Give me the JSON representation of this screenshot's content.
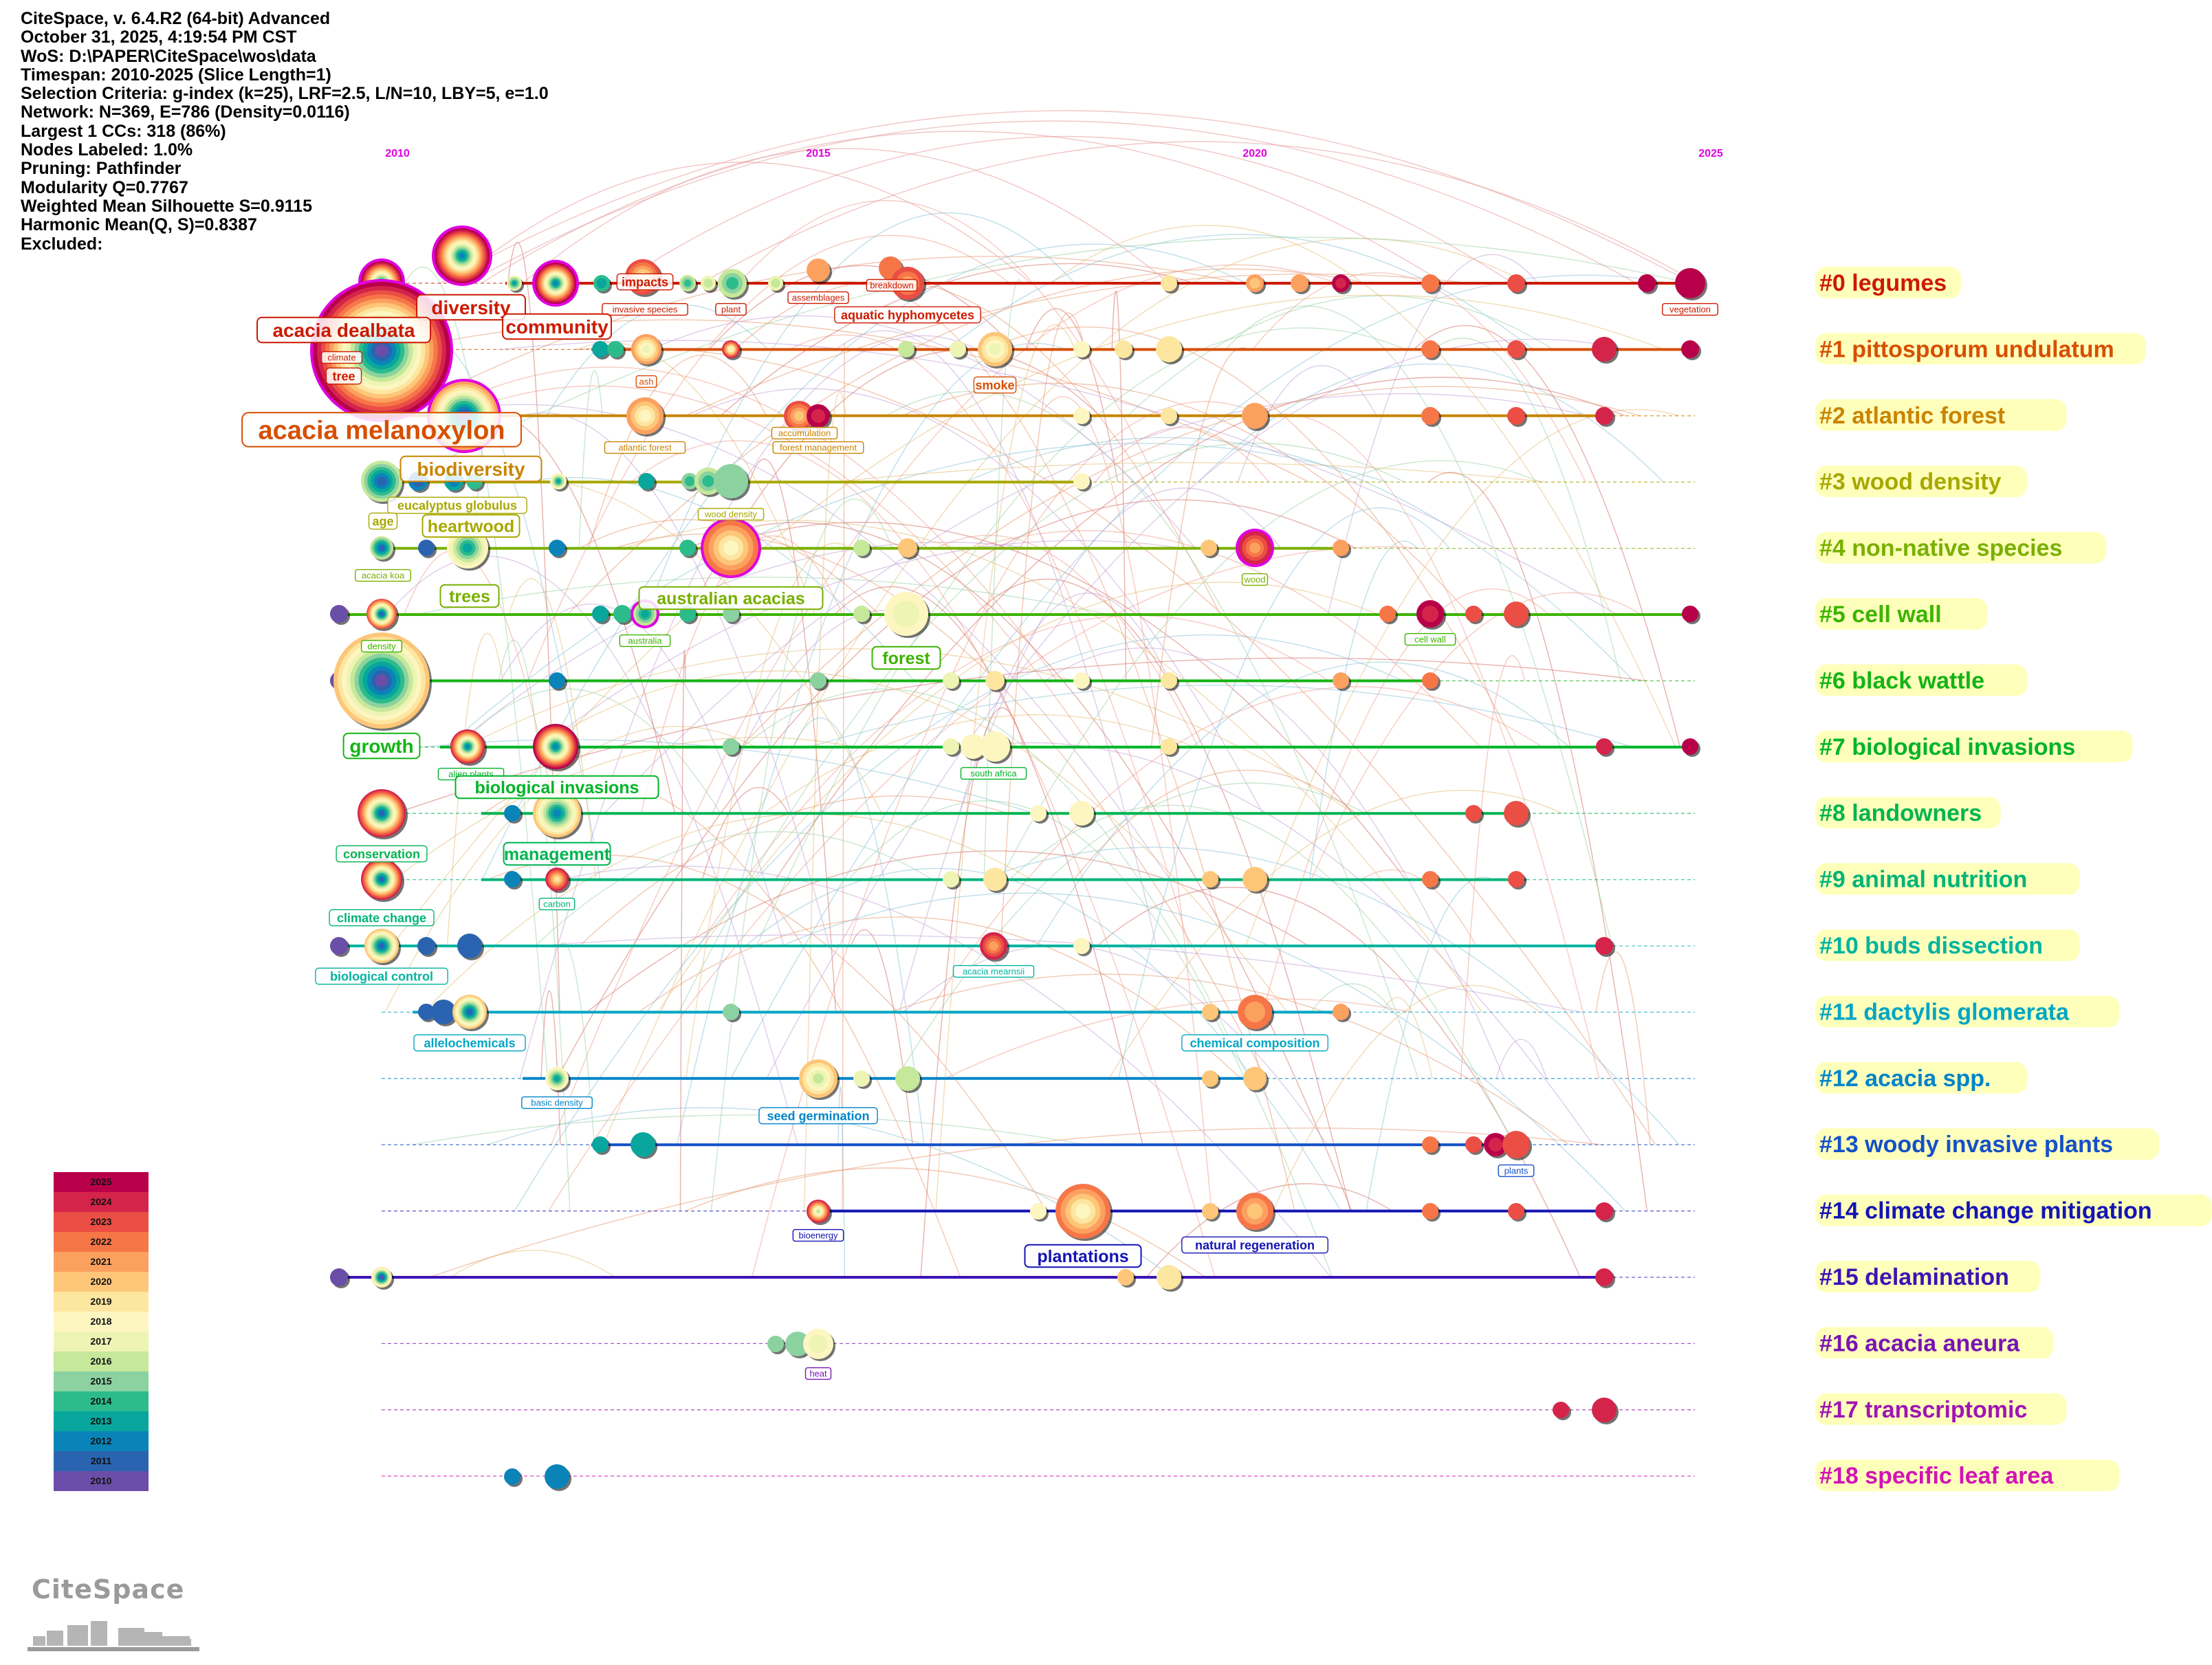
{
  "info": {
    "lines": [
      "CiteSpace, v. 6.4.R2 (64-bit) Advanced",
      "October 31, 2025, 4:19:54 PM CST",
      "WoS: D:\\PAPER\\CiteSpace\\wos\\data",
      "Timespan: 2010-2025 (Slice Length=1)",
      "Selection Criteria: g-index (k=25), LRF=2.5, L/N=10, LBY=5, e=1.0",
      "Network: N=369, E=786 (Density=0.0116)",
      "Largest 1 CCs: 318 (86%)",
      "Nodes Labeled: 1.0%",
      "Pruning: Pathfinder",
      "Modularity Q=0.7767",
      "Weighted Mean Silhouette S=0.9115",
      "Harmonic Mean(Q, S)=0.8387",
      "Excluded:"
    ]
  },
  "timeline": {
    "year_start": 2010,
    "year_end": 2025,
    "year_ticks": [
      "2010",
      "2015",
      "2020",
      "2025"
    ],
    "tick_color": "#e000e0"
  },
  "clusters": [
    {
      "id": 0,
      "label": "#0 legumes",
      "color": "#cc1a00"
    },
    {
      "id": 1,
      "label": "#1 pittosporum undulatum",
      "color": "#d64f00"
    },
    {
      "id": 2,
      "label": "#2 atlantic forest",
      "color": "#c98400"
    },
    {
      "id": 3,
      "label": "#3 wood density",
      "color": "#a8a800"
    },
    {
      "id": 4,
      "label": "#4 non-native species",
      "color": "#78b000"
    },
    {
      "id": 5,
      "label": "#5 cell wall",
      "color": "#3cb400"
    },
    {
      "id": 6,
      "label": "#6 black wattle",
      "color": "#14b414"
    },
    {
      "id": 7,
      "label": "#7 biological invasions",
      "color": "#00b428"
    },
    {
      "id": 8,
      "label": "#8 landowners",
      "color": "#00b450"
    },
    {
      "id": 9,
      "label": "#9 animal nutrition",
      "color": "#00b478"
    },
    {
      "id": 10,
      "label": "#10 buds dissection",
      "color": "#00b4a0"
    },
    {
      "id": 11,
      "label": "#11 dactylis glomerata",
      "color": "#00a6c4"
    },
    {
      "id": 12,
      "label": "#12 acacia spp.",
      "color": "#0084c8"
    },
    {
      "id": 13,
      "label": "#13 woody invasive plants",
      "color": "#1450c8"
    },
    {
      "id": 14,
      "label": "#14 climate change mitigation",
      "color": "#1414b4"
    },
    {
      "id": 15,
      "label": "#15 delamination",
      "color": "#3c14b4"
    },
    {
      "id": 16,
      "label": "#16 acacia aneura",
      "color": "#7814b4"
    },
    {
      "id": 17,
      "label": "#17 transcriptomic",
      "color": "#a014b4"
    },
    {
      "id": 18,
      "label": "#18 specific leaf area",
      "color": "#d214b4"
    }
  ],
  "year_colors": {
    "2010": "#6b4ea8",
    "2011": "#2a64b0",
    "2012": "#0a84b8",
    "2013": "#08a69c",
    "2014": "#2cbc8c",
    "2015": "#8cd2a0",
    "2016": "#c6e89a",
    "2017": "#eef4b4",
    "2018": "#fdf6c0",
    "2019": "#fde6a0",
    "2020": "#fdc678",
    "2021": "#fca060",
    "2022": "#f77648",
    "2023": "#ea4e44",
    "2024": "#d4244a",
    "2025": "#b8004a"
  },
  "legend_years": [
    "2025",
    "2024",
    "2023",
    "2022",
    "2021",
    "2020",
    "2019",
    "2018",
    "2017",
    "2016",
    "2015",
    "2014",
    "2013",
    "2012",
    "2011",
    "2010"
  ],
  "keywords": [
    {
      "text": "diversity",
      "cluster": 0,
      "size": "large"
    },
    {
      "text": "impacts",
      "cluster": 0,
      "size": "small"
    },
    {
      "text": "invasive species",
      "cluster": 0,
      "size": "tiny"
    },
    {
      "text": "plant",
      "cluster": 0,
      "size": "tiny"
    },
    {
      "text": "assemblages",
      "cluster": 0,
      "size": "tiny"
    },
    {
      "text": "breakdown",
      "cluster": 0,
      "size": "tiny"
    },
    {
      "text": "aquatic hyphomycetes",
      "cluster": 0,
      "size": "small"
    },
    {
      "text": "vegetation",
      "cluster": 0,
      "size": "tiny"
    },
    {
      "text": "acacia dealbata",
      "cluster": 0,
      "size": "large"
    },
    {
      "text": "community",
      "cluster": 0,
      "size": "large"
    },
    {
      "text": "climate",
      "cluster": 0,
      "size": "tiny"
    },
    {
      "text": "tree",
      "cluster": 0,
      "size": "small"
    },
    {
      "text": "ash",
      "cluster": 1,
      "size": "tiny"
    },
    {
      "text": "smoke",
      "cluster": 1,
      "size": "small"
    },
    {
      "text": "acacia melanoxylon",
      "cluster": 1,
      "size": "huge"
    },
    {
      "text": "accumulation",
      "cluster": 2,
      "size": "tiny"
    },
    {
      "text": "atlantic forest",
      "cluster": 2,
      "size": "tiny"
    },
    {
      "text": "forest management",
      "cluster": 2,
      "size": "tiny"
    },
    {
      "text": "biodiversity",
      "cluster": 2,
      "size": "large"
    },
    {
      "text": "eucalyptus globulus",
      "cluster": 3,
      "size": "small"
    },
    {
      "text": "wood density",
      "cluster": 3,
      "size": "tiny"
    },
    {
      "text": "age",
      "cluster": 3,
      "size": "small"
    },
    {
      "text": "heartwood",
      "cluster": 3,
      "size": "medium"
    },
    {
      "text": "acacia koa",
      "cluster": 4,
      "size": "tiny"
    },
    {
      "text": "trees",
      "cluster": 4,
      "size": "medium"
    },
    {
      "text": "australian acacias",
      "cluster": 4,
      "size": "medium"
    },
    {
      "text": "wood",
      "cluster": 4,
      "size": "tiny"
    },
    {
      "text": "density",
      "cluster": 5,
      "size": "tiny"
    },
    {
      "text": "australia",
      "cluster": 5,
      "size": "tiny"
    },
    {
      "text": "forest",
      "cluster": 5,
      "size": "medium"
    },
    {
      "text": "cell wall",
      "cluster": 5,
      "size": "tiny"
    },
    {
      "text": "growth",
      "cluster": 6,
      "size": "large"
    },
    {
      "text": "alien plants",
      "cluster": 7,
      "size": "tiny"
    },
    {
      "text": "biological invasions",
      "cluster": 7,
      "size": "medium"
    },
    {
      "text": "south africa",
      "cluster": 7,
      "size": "tiny"
    },
    {
      "text": "conservation",
      "cluster": 8,
      "size": "small"
    },
    {
      "text": "management",
      "cluster": 8,
      "size": "medium"
    },
    {
      "text": "carbon",
      "cluster": 9,
      "size": "tiny"
    },
    {
      "text": "climate change",
      "cluster": 9,
      "size": "small"
    },
    {
      "text": "biological control",
      "cluster": 10,
      "size": "small"
    },
    {
      "text": "acacia mearnsii",
      "cluster": 10,
      "size": "tiny"
    },
    {
      "text": "allelochemicals",
      "cluster": 11,
      "size": "small"
    },
    {
      "text": "chemical composition",
      "cluster": 11,
      "size": "small"
    },
    {
      "text": "basic density",
      "cluster": 12,
      "size": "tiny"
    },
    {
      "text": "seed germination",
      "cluster": 12,
      "size": "small"
    },
    {
      "text": "plants",
      "cluster": 13,
      "size": "tiny"
    },
    {
      "text": "bioenergy",
      "cluster": 14,
      "size": "tiny"
    },
    {
      "text": "plantations",
      "cluster": 14,
      "size": "medium"
    },
    {
      "text": "natural regeneration",
      "cluster": 14,
      "size": "small"
    },
    {
      "text": "heat",
      "cluster": 16,
      "size": "tiny"
    }
  ],
  "logo_text": "CiteSpace"
}
